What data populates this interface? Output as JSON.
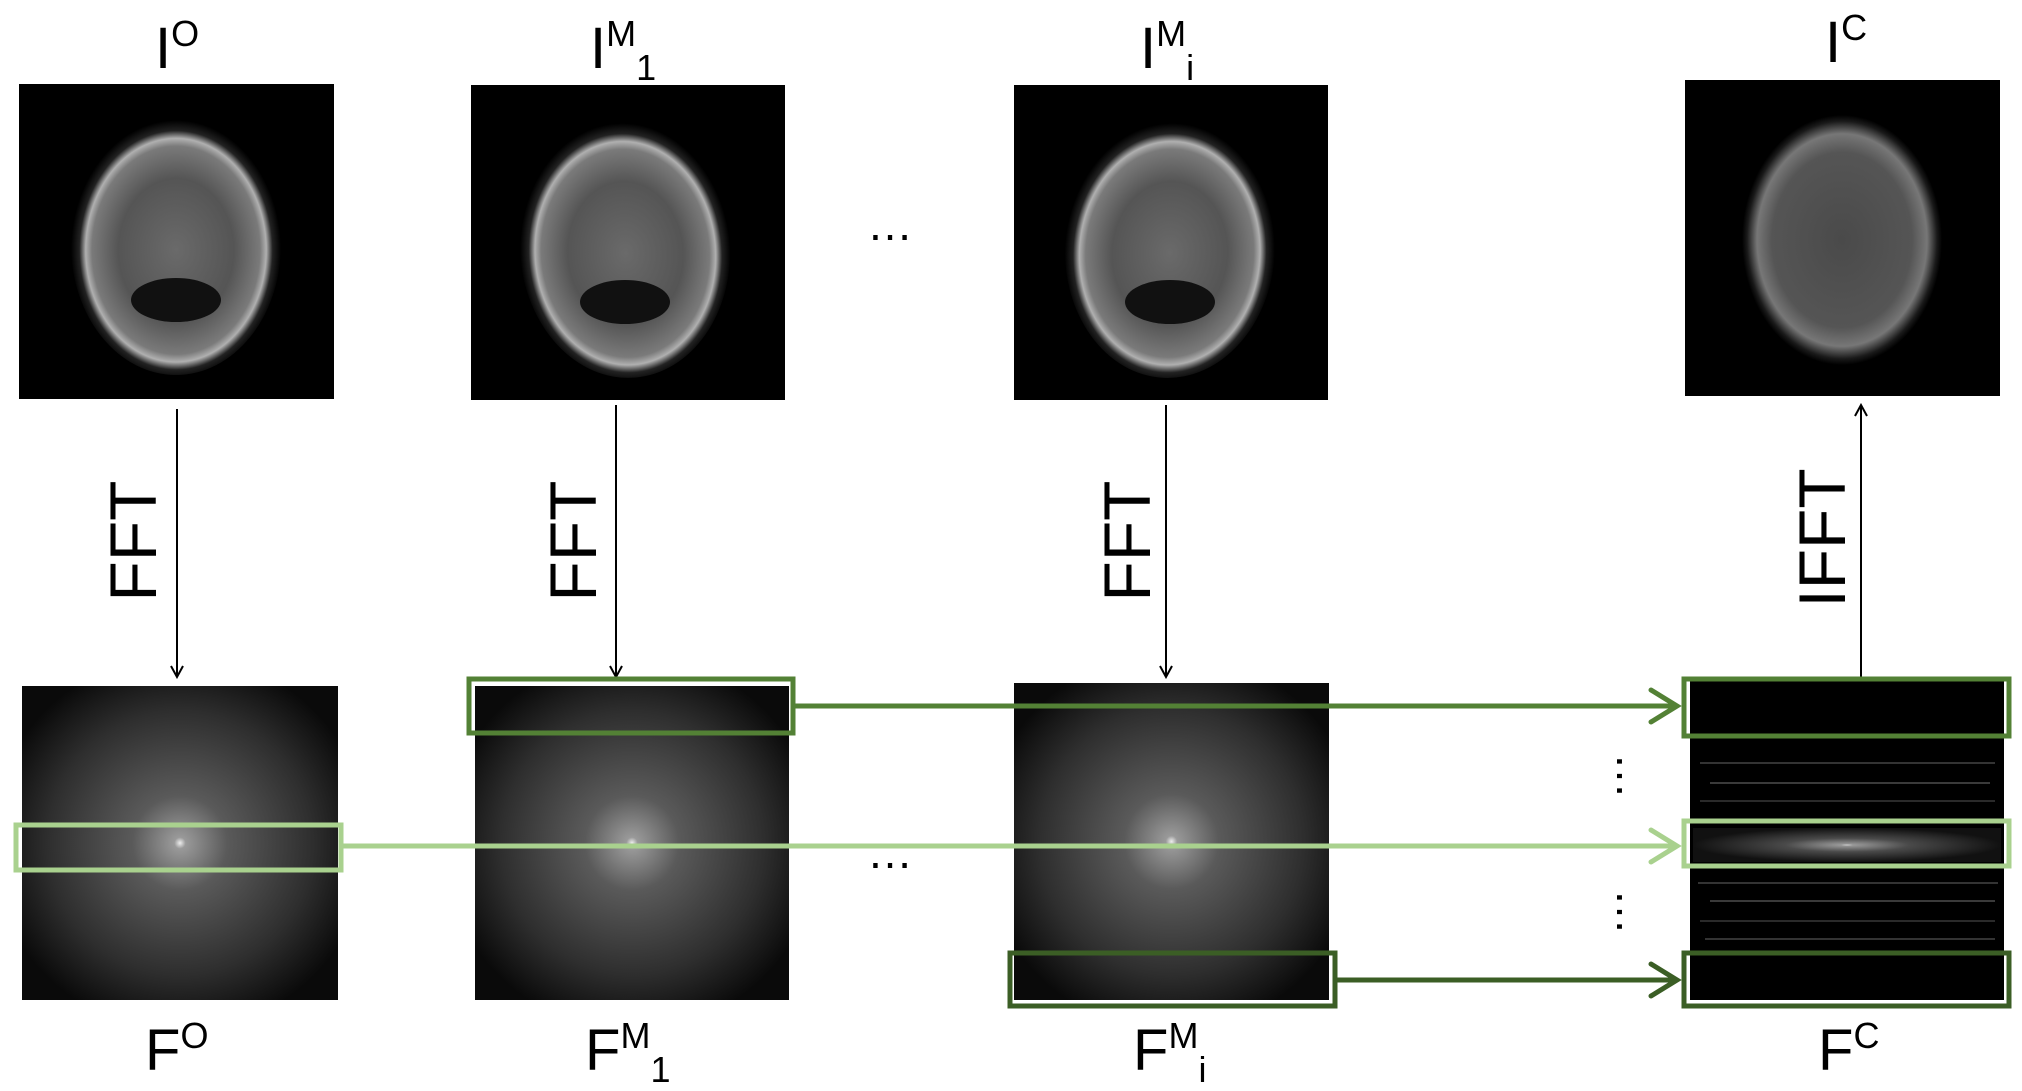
{
  "images": {
    "original": {
      "base": "I",
      "sup": "O",
      "sub": ""
    },
    "motion_1": {
      "base": "I",
      "sup": "M",
      "sub": "1"
    },
    "motion_i": {
      "base": "I",
      "sup": "M",
      "sub": "i"
    },
    "combined": {
      "base": "I",
      "sup": "C",
      "sub": ""
    }
  },
  "spectra": {
    "original": {
      "base": "F",
      "sup": "O",
      "sub": ""
    },
    "motion_1": {
      "base": "F",
      "sup": "M",
      "sub": "1"
    },
    "motion_i": {
      "base": "F",
      "sup": "M",
      "sub": "i"
    },
    "combined": {
      "base": "F",
      "sup": "C",
      "sub": ""
    }
  },
  "transforms": {
    "forward": "FFT",
    "inverse": "IFFT"
  },
  "ellipsis": "…",
  "colors": {
    "green_mid": "#538135",
    "green_light": "#a9d18e",
    "green_dark": "#3b5e25"
  }
}
